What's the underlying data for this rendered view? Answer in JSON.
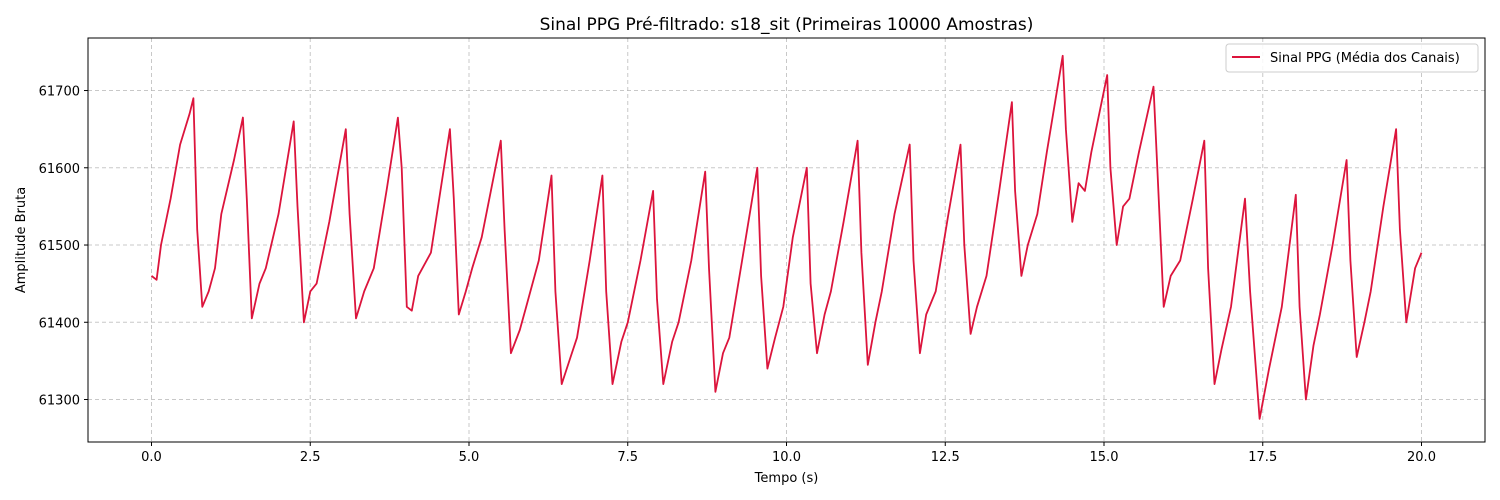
{
  "chart_data": {
    "type": "line",
    "title": "Sinal PPG Pré-filtrado: s18_sit (Primeiras 10000 Amostras)",
    "xlabel": "Tempo (s)",
    "ylabel": "Amplitude Bruta",
    "xlim": [
      -1.0,
      21.0
    ],
    "ylim": [
      61245,
      61768
    ],
    "xticks": [
      0.0,
      2.5,
      5.0,
      7.5,
      10.0,
      12.5,
      15.0,
      17.5,
      20.0
    ],
    "xtick_labels": [
      "0.0",
      "2.5",
      "5.0",
      "7.5",
      "10.0",
      "12.5",
      "15.0",
      "17.5",
      "20.0"
    ],
    "yticks": [
      61300,
      61400,
      61500,
      61600,
      61700
    ],
    "ytick_labels": [
      "61300",
      "61400",
      "61500",
      "61600",
      "61700"
    ],
    "grid": true,
    "legend_position": "top-right",
    "series": [
      {
        "name": "Sinal PPG (Média dos Canais)",
        "color": "#dc143c",
        "x": [
          0.0,
          0.08,
          0.15,
          0.3,
          0.45,
          0.6,
          0.66,
          0.72,
          0.8,
          0.9,
          1.0,
          1.1,
          1.3,
          1.44,
          1.5,
          1.58,
          1.7,
          1.8,
          2.0,
          2.24,
          2.3,
          2.4,
          2.5,
          2.6,
          2.8,
          3.06,
          3.12,
          3.22,
          3.35,
          3.5,
          3.7,
          3.88,
          3.94,
          4.02,
          4.1,
          4.2,
          4.4,
          4.7,
          4.76,
          4.84,
          4.95,
          5.05,
          5.2,
          5.5,
          5.56,
          5.66,
          5.8,
          5.9,
          6.1,
          6.3,
          6.36,
          6.46,
          6.6,
          6.7,
          6.9,
          7.1,
          7.16,
          7.26,
          7.4,
          7.5,
          7.7,
          7.9,
          7.96,
          8.06,
          8.2,
          8.3,
          8.5,
          8.72,
          8.78,
          8.88,
          9.0,
          9.1,
          9.3,
          9.54,
          9.6,
          9.7,
          9.82,
          9.95,
          10.1,
          10.32,
          10.38,
          10.48,
          10.6,
          10.7,
          10.9,
          11.12,
          11.18,
          11.28,
          11.4,
          11.5,
          11.7,
          11.94,
          12.0,
          12.1,
          12.2,
          12.35,
          12.55,
          12.74,
          12.8,
          12.9,
          13.0,
          13.15,
          13.35,
          13.55,
          13.6,
          13.7,
          13.8,
          13.95,
          14.1,
          14.35,
          14.4,
          14.5,
          14.6,
          14.7,
          14.8,
          15.05,
          15.1,
          15.2,
          15.3,
          15.4,
          15.55,
          15.78,
          15.84,
          15.94,
          16.05,
          16.2,
          16.4,
          16.58,
          16.64,
          16.74,
          16.85,
          17.0,
          17.22,
          17.3,
          17.45,
          17.6,
          17.8,
          18.02,
          18.08,
          18.18,
          18.3,
          18.4,
          18.6,
          18.82,
          18.88,
          18.98,
          19.1,
          19.2,
          19.4,
          19.6,
          19.66,
          19.76,
          19.9,
          20.0
        ],
        "y": [
          61460,
          61455,
          61500,
          61560,
          61630,
          61670,
          61690,
          61520,
          61420,
          61440,
          61470,
          61540,
          61610,
          61665,
          61560,
          61405,
          61450,
          61470,
          61540,
          61660,
          61550,
          61400,
          61440,
          61450,
          61530,
          61650,
          61540,
          61405,
          61440,
          61470,
          61570,
          61665,
          61600,
          61420,
          61415,
          61460,
          61490,
          61650,
          61560,
          61410,
          61440,
          61470,
          61510,
          61635,
          61520,
          61360,
          61390,
          61420,
          61480,
          61590,
          61440,
          61320,
          61355,
          61380,
          61480,
          61590,
          61440,
          61320,
          61375,
          61400,
          61480,
          61570,
          61430,
          61320,
          61375,
          61400,
          61480,
          61595,
          61470,
          61310,
          61360,
          61380,
          61480,
          61600,
          61460,
          61340,
          61380,
          61420,
          61510,
          61600,
          61450,
          61360,
          61410,
          61440,
          61530,
          61635,
          61490,
          61345,
          61400,
          61440,
          61540,
          61630,
          61480,
          61360,
          61410,
          61440,
          61540,
          61630,
          61500,
          61385,
          61420,
          61460,
          61570,
          61685,
          61570,
          61460,
          61500,
          61540,
          61620,
          61745,
          61650,
          61530,
          61580,
          61570,
          61620,
          61720,
          61600,
          61500,
          61550,
          61560,
          61620,
          61705,
          61600,
          61420,
          61460,
          61480,
          61560,
          61635,
          61470,
          61320,
          61365,
          61420,
          61560,
          61440,
          61275,
          61340,
          61420,
          61565,
          61420,
          61300,
          61370,
          61410,
          61500,
          61610,
          61480,
          61355,
          61400,
          61440,
          61550,
          61650,
          61520,
          61400,
          61470,
          61490
        ]
      }
    ]
  }
}
